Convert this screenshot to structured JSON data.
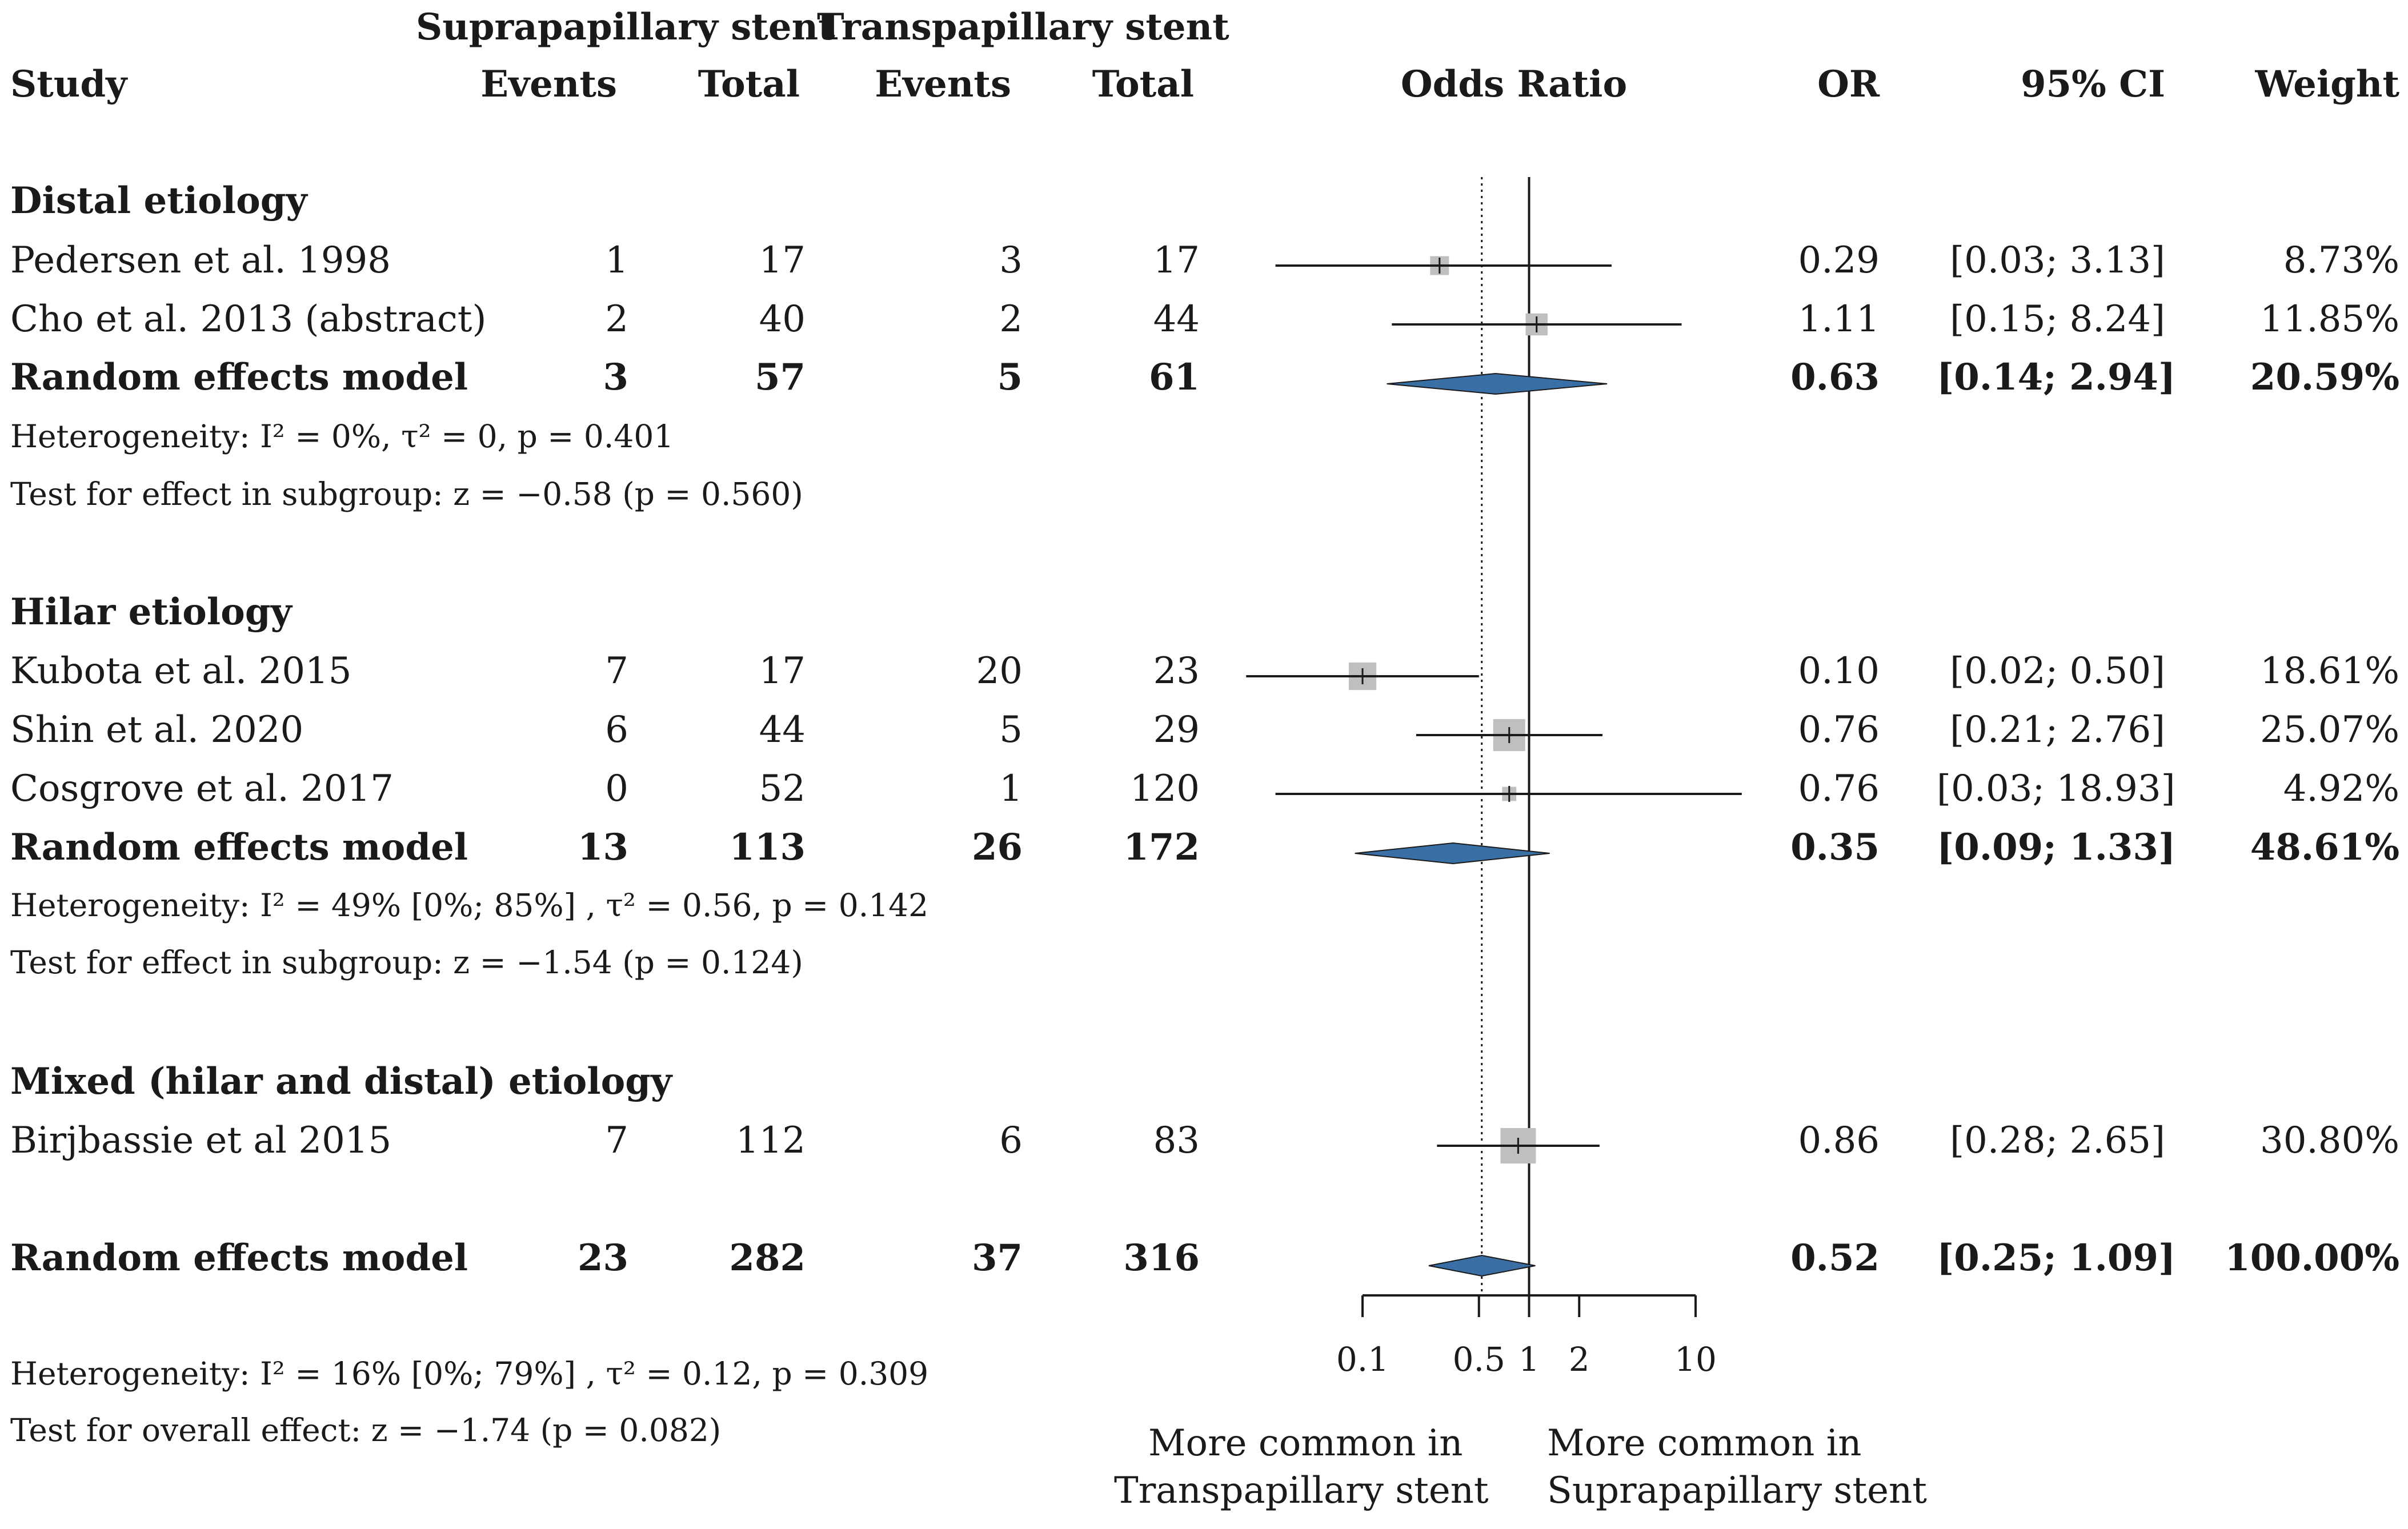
{
  "header": {
    "group1_title": "Suprapapillary stent",
    "group2_title": "Transpapillary stent",
    "study": "Study",
    "events1": "Events",
    "total1": "Total",
    "events2": "Events",
    "total2": "Total",
    "odds_ratio": "Odds Ratio",
    "or": "OR",
    "ci": "95% CI",
    "weight": "Weight"
  },
  "subgroups": [
    {
      "title": "Distal etiology",
      "studies": [
        {
          "name": "Pedersen et al. 1998",
          "e1": "1",
          "t1": "17",
          "e2": "3",
          "t2": "17",
          "or": "0.29",
          "ci": "[0.03;  3.13]",
          "weight": "8.73%"
        },
        {
          "name": "Cho et al. 2013 (abstract)",
          "e1": "2",
          "t1": "40",
          "e2": "2",
          "t2": "44",
          "or": "1.11",
          "ci": "[0.15;  8.24]",
          "weight": "11.85%"
        }
      ],
      "model": {
        "name": "Random effects model",
        "e1": "3",
        "t1": "57",
        "e2": "5",
        "t2": "61",
        "or": "0.63",
        "ci": "[0.14;  2.94]",
        "weight": "20.59%"
      },
      "heterogeneity": "Heterogeneity:  I² = 0%,  τ² = 0,  p = 0.401",
      "test": "Test for effect in subgroup:  z = −0.58 (p = 0.560)"
    },
    {
      "title": "Hilar etiology",
      "studies": [
        {
          "name": "Kubota et al. 2015",
          "e1": "7",
          "t1": "17",
          "e2": "20",
          "t2": "23",
          "or": "0.10",
          "ci": "[0.02;  0.50]",
          "weight": "18.61%"
        },
        {
          "name": "Shin et al. 2020",
          "e1": "6",
          "t1": "44",
          "e2": "5",
          "t2": "29",
          "or": "0.76",
          "ci": "[0.21;  2.76]",
          "weight": "25.07%"
        },
        {
          "name": "Cosgrove et al. 2017",
          "e1": "0",
          "t1": "52",
          "e2": "1",
          "t2": "120",
          "or": "0.76",
          "ci": "[0.03; 18.93]",
          "weight": "4.92%"
        }
      ],
      "model": {
        "name": "Random effects model",
        "e1": "13",
        "t1": "113",
        "e2": "26",
        "t2": "172",
        "or": "0.35",
        "ci": "[0.09;  1.33]",
        "weight": "48.61%"
      },
      "heterogeneity": "Heterogeneity:  I² = 49% [0%; 85%] ,  τ² = 0.56,  p = 0.142",
      "test": "Test for effect in subgroup:  z = −1.54 (p = 0.124)"
    },
    {
      "title": "Mixed (hilar and distal) etiology",
      "studies": [
        {
          "name": "Birjbassie et al 2015",
          "e1": "7",
          "t1": "112",
          "e2": "6",
          "t2": "83",
          "or": "0.86",
          "ci": "[0.28;  2.65]",
          "weight": "30.80%"
        }
      ]
    }
  ],
  "overall": {
    "model": {
      "name": "Random effects model",
      "e1": "23",
      "t1": "282",
      "e2": "37",
      "t2": "316",
      "or": "0.52",
      "ci": "[0.25;  1.09]",
      "weight": "100.00%"
    },
    "heterogeneity": "Heterogeneity:  I² = 16% [0%; 79%] ,  τ² = 0.12,  p = 0.309",
    "test": "Test for overall effect:  z = −1.74 (p = 0.082)"
  },
  "favours": {
    "left_line1": "More common in",
    "left_line2": "Transpapillary stent",
    "right_line1": "More common in",
    "right_line2": "Suprapapillary stent"
  },
  "colors": {
    "diamond": "#3a6fa5",
    "square": "#bfbfbf",
    "line": "#1a1a1a"
  },
  "chart_data": {
    "type": "forest",
    "title": "Odds Ratio",
    "scale": "log",
    "xlim": [
      0.1,
      10
    ],
    "ticks": [
      0.1,
      0.5,
      1,
      2,
      10
    ],
    "tick_labels": [
      "0.1",
      "0.5",
      "1",
      "2",
      "10"
    ],
    "null_line": 1,
    "overall_line": 0.52,
    "studies": [
      {
        "name": "Pedersen et al. 1998",
        "or": 0.29,
        "lo": 0.03,
        "hi": 3.13,
        "weight": 8.73
      },
      {
        "name": "Cho et al. 2013 (abstract)",
        "or": 1.11,
        "lo": 0.15,
        "hi": 8.24,
        "weight": 11.85
      },
      {
        "name": "Kubota et al. 2015",
        "or": 0.1,
        "lo": 0.02,
        "hi": 0.5,
        "weight": 18.61
      },
      {
        "name": "Shin et al. 2020",
        "or": 0.76,
        "lo": 0.21,
        "hi": 2.76,
        "weight": 25.07
      },
      {
        "name": "Cosgrove et al. 2017",
        "or": 0.76,
        "lo": 0.03,
        "hi": 18.93,
        "weight": 4.92
      },
      {
        "name": "Birjbassie et al 2015",
        "or": 0.86,
        "lo": 0.28,
        "hi": 2.65,
        "weight": 30.8
      }
    ],
    "pooled": [
      {
        "name": "Random effects model (Distal etiology)",
        "or": 0.63,
        "lo": 0.14,
        "hi": 2.94
      },
      {
        "name": "Random effects model (Hilar etiology)",
        "or": 0.35,
        "lo": 0.09,
        "hi": 1.33
      },
      {
        "name": "Random effects model (overall)",
        "or": 0.52,
        "lo": 0.25,
        "hi": 1.09
      }
    ]
  }
}
